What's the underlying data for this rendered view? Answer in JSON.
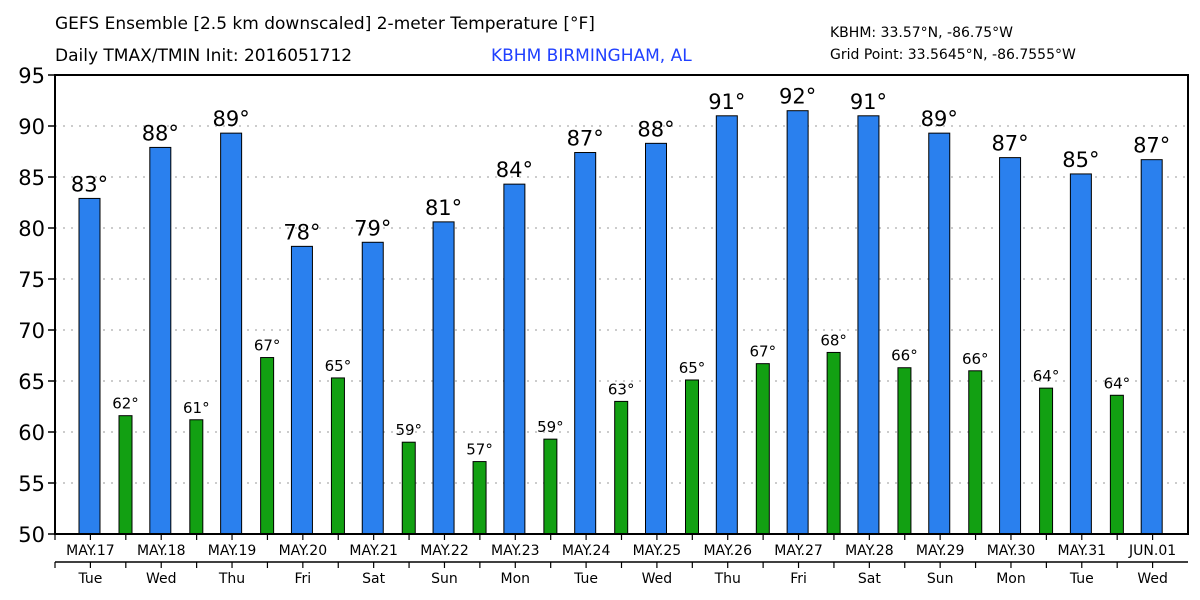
{
  "header": {
    "title_line1": "GEFS Ensemble [2.5 km downscaled] 2-meter Temperature [°F]",
    "title_line2": "Daily TMAX/TMIN Init: 2016051712",
    "location": "KBHM BIRMINGHAM, AL",
    "station_coords": "KBHM: 33.57°N, -86.75°W",
    "grid_point": "Grid Point: 33.5645°N, -86.7555°W"
  },
  "colors": {
    "tmax": "#2a80ee",
    "tmin": "#12a012",
    "location": "#2040ff"
  },
  "chart_data": {
    "type": "bar",
    "title": "GEFS Ensemble [2.5 km downscaled] 2-meter Temperature [°F]",
    "xlabel": "",
    "ylabel": "",
    "ylim": [
      50,
      95
    ],
    "yticks": [
      50,
      55,
      60,
      65,
      70,
      75,
      80,
      85,
      90,
      95
    ],
    "grid": "horizontal dotted",
    "categories": [
      "MAY.17",
      "MAY.18",
      "MAY.19",
      "MAY.20",
      "MAY.21",
      "MAY.22",
      "MAY.23",
      "MAY.24",
      "MAY.25",
      "MAY.26",
      "MAY.27",
      "MAY.28",
      "MAY.29",
      "MAY.30",
      "MAY.31",
      "JUN.01"
    ],
    "weekdays": [
      "Tue",
      "Wed",
      "Thu",
      "Fri",
      "Sat",
      "Sun",
      "Mon",
      "Tue",
      "Wed",
      "Thu",
      "Fri",
      "Sat",
      "Sun",
      "Mon",
      "Tue",
      "Wed"
    ],
    "series": [
      {
        "name": "TMAX",
        "values": [
          82.9,
          87.9,
          89.3,
          78.2,
          78.6,
          80.6,
          84.3,
          87.4,
          88.3,
          91.0,
          91.5,
          91.0,
          89.3,
          86.9,
          85.3,
          86.7
        ],
        "labels": [
          "83°",
          "88°",
          "89°",
          "78°",
          "79°",
          "81°",
          "84°",
          "87°",
          "88°",
          "91°",
          "92°",
          "91°",
          "89°",
          "87°",
          "85°",
          "87°"
        ]
      },
      {
        "name": "TMIN",
        "values": [
          61.6,
          61.2,
          67.3,
          65.3,
          59.0,
          57.1,
          59.3,
          63.0,
          65.1,
          66.7,
          67.8,
          66.3,
          66.0,
          64.3,
          63.6,
          null
        ],
        "labels": [
          "62°",
          "61°",
          "67°",
          "65°",
          "59°",
          "57°",
          "59°",
          "63°",
          "65°",
          "67°",
          "68°",
          "66°",
          "66°",
          "64°",
          "64°",
          null
        ]
      }
    ]
  }
}
